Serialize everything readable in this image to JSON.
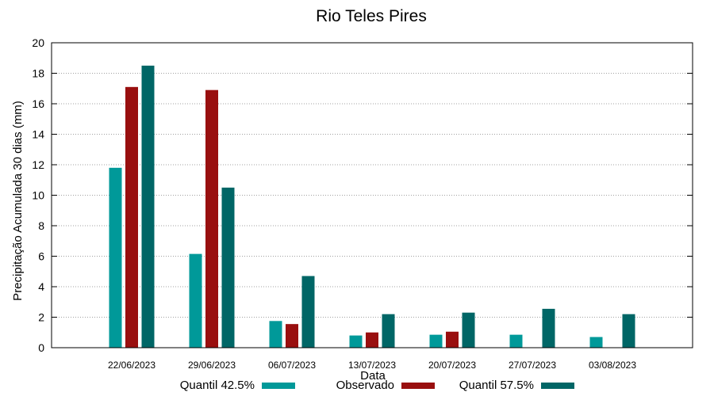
{
  "chart_data": {
    "type": "bar",
    "title": "Rio Teles Pires",
    "xlabel": "Data",
    "ylabel": "Precipitação Acumulada 30 dias (mm)",
    "ylim": [
      0,
      20
    ],
    "yticks": [
      0,
      2,
      4,
      6,
      8,
      10,
      12,
      14,
      16,
      18,
      20
    ],
    "grid": true,
    "legend_position": "bottom",
    "categories": [
      "22/06/2023",
      "29/06/2023",
      "06/07/2023",
      "13/07/2023",
      "20/07/2023",
      "27/07/2023",
      "03/08/2023"
    ],
    "series": [
      {
        "name": "Quantil 42.5%",
        "color": "#009999",
        "values": [
          11.8,
          6.15,
          1.75,
          0.8,
          0.85,
          0.85,
          0.7
        ]
      },
      {
        "name": "Observado",
        "color": "#990f0f",
        "values": [
          17.1,
          16.9,
          1.55,
          1.0,
          1.05,
          null,
          null
        ]
      },
      {
        "name": "Quantil 57.5%",
        "color": "#006666",
        "values": [
          18.5,
          10.5,
          4.7,
          2.2,
          2.3,
          2.55,
          2.2
        ]
      }
    ]
  }
}
